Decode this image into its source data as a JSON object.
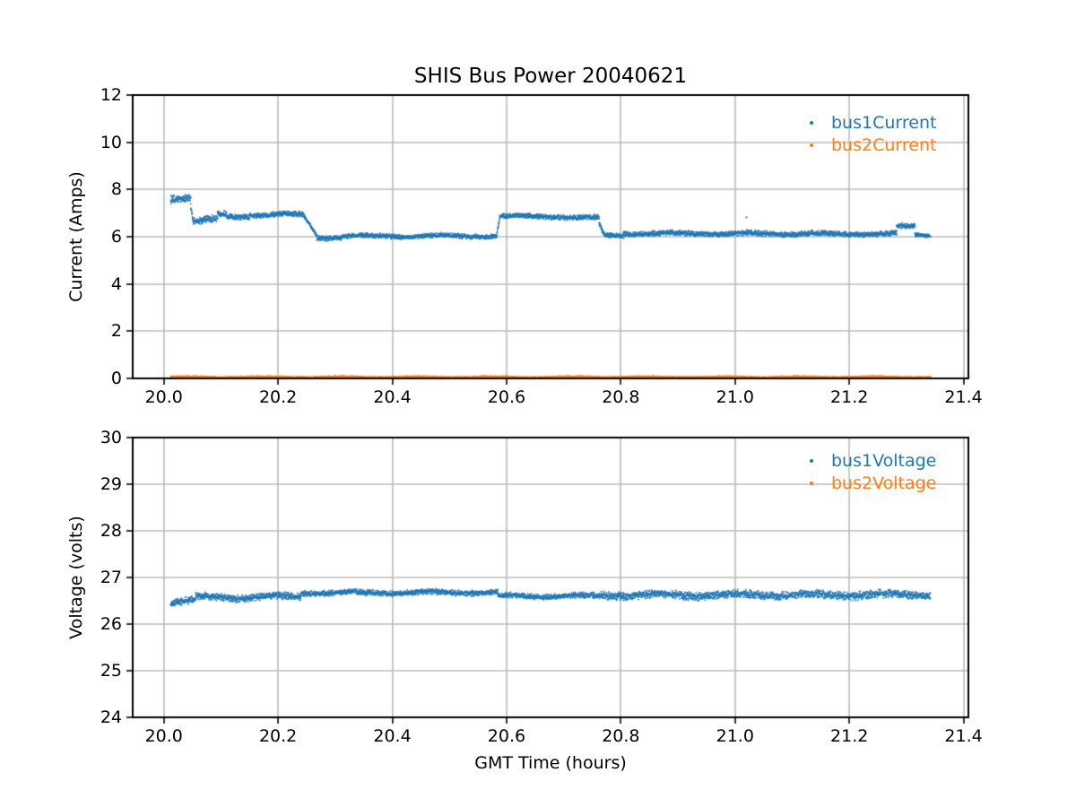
{
  "title": "SHIS Bus Power 20040621",
  "colors": {
    "bus1": "#1f77b4",
    "bus2": "#ff7f0e",
    "grid": "#bbbbbb",
    "spine": "#000000",
    "text": "#000000",
    "background": "#ffffff"
  },
  "chart_data": [
    {
      "type": "scatter",
      "title": "SHIS Bus Power 20040621",
      "xlabel": "",
      "ylabel": "Current (Amps)",
      "xlim": [
        19.9455,
        21.4085
      ],
      "ylim": [
        0,
        12
      ],
      "xticks": [
        20.0,
        20.2,
        20.4,
        20.6,
        20.8,
        21.0,
        21.2,
        21.4
      ],
      "xtick_labels": [
        "20.0",
        "20.2",
        "20.4",
        "20.6",
        "20.8",
        "21.0",
        "21.2",
        "21.4"
      ],
      "yticks": [
        0,
        2,
        4,
        6,
        8,
        10,
        12
      ],
      "ytick_labels": [
        "0",
        "2",
        "4",
        "6",
        "8",
        "10",
        "12"
      ],
      "grid": true,
      "legend_position": "upper right",
      "series": [
        {
          "name": "bus1Current",
          "color": "#1f77b4",
          "marker": "dot",
          "segments": [
            [
              20.012,
              20.047,
              7.62,
              7.68,
              0.2
            ],
            [
              20.047,
              20.051,
              7.3,
              6.7,
              0.12
            ],
            [
              20.051,
              20.068,
              6.65,
              6.65,
              0.18
            ],
            [
              20.068,
              20.094,
              6.7,
              6.72,
              0.18
            ],
            [
              20.094,
              20.11,
              6.95,
              6.95,
              0.14
            ],
            [
              20.11,
              20.15,
              6.86,
              6.86,
              0.14
            ],
            [
              20.15,
              20.245,
              6.92,
              6.94,
              0.13
            ],
            [
              20.245,
              20.268,
              6.88,
              6.05,
              0.08
            ],
            [
              20.268,
              20.31,
              5.97,
              5.97,
              0.13
            ],
            [
              20.31,
              20.583,
              6.02,
              6.03,
              0.12
            ],
            [
              20.583,
              20.588,
              6.1,
              6.8,
              0.08
            ],
            [
              20.588,
              20.7,
              6.86,
              6.86,
              0.12
            ],
            [
              20.7,
              20.762,
              6.82,
              6.78,
              0.13
            ],
            [
              20.762,
              20.77,
              6.55,
              6.1,
              0.1
            ],
            [
              20.77,
              20.805,
              6.05,
              6.05,
              0.12
            ],
            [
              20.805,
              21.283,
              6.14,
              6.12,
              0.13
            ],
            [
              21.283,
              21.315,
              6.42,
              6.42,
              0.13
            ],
            [
              21.315,
              21.342,
              6.07,
              6.07,
              0.1
            ]
          ],
          "outliers": [
            [
              21.02,
              6.82
            ]
          ]
        },
        {
          "name": "bus2Current",
          "color": "#ff7f0e",
          "marker": "dot",
          "segments": [
            [
              20.012,
              21.342,
              0.05,
              0.05,
              0.05
            ]
          ],
          "outliers": []
        }
      ]
    },
    {
      "type": "scatter",
      "title": "",
      "xlabel": "GMT Time (hours)",
      "ylabel": "Voltage (volts)",
      "xlim": [
        19.9455,
        21.4085
      ],
      "ylim": [
        24,
        30
      ],
      "xticks": [
        20.0,
        20.2,
        20.4,
        20.6,
        20.8,
        21.0,
        21.2,
        21.4
      ],
      "xtick_labels": [
        "20.0",
        "20.2",
        "20.4",
        "20.6",
        "20.8",
        "21.0",
        "21.2",
        "21.4"
      ],
      "yticks": [
        24,
        25,
        26,
        27,
        28,
        29,
        30
      ],
      "ytick_labels": [
        "24",
        "25",
        "26",
        "27",
        "28",
        "29",
        "30"
      ],
      "grid": true,
      "legend_position": "upper right",
      "series": [
        {
          "name": "bus1Voltage",
          "color": "#1f77b4",
          "marker": "dot",
          "segments": [
            [
              20.012,
              20.055,
              26.48,
              26.5,
              0.09
            ],
            [
              20.055,
              20.24,
              26.57,
              26.59,
              0.09
            ],
            [
              20.24,
              20.585,
              26.67,
              26.68,
              0.07
            ],
            [
              20.585,
              20.765,
              26.6,
              26.6,
              0.07
            ],
            [
              20.765,
              21.31,
              26.62,
              26.63,
              0.1
            ],
            [
              21.31,
              21.342,
              26.63,
              26.63,
              0.08
            ]
          ],
          "outliers": []
        },
        {
          "name": "bus2Voltage",
          "color": "#ff7f0e",
          "marker": "dot",
          "segments": [],
          "outliers": [],
          "note": "legend entry shown; no data points within visible axis range"
        }
      ]
    }
  ]
}
